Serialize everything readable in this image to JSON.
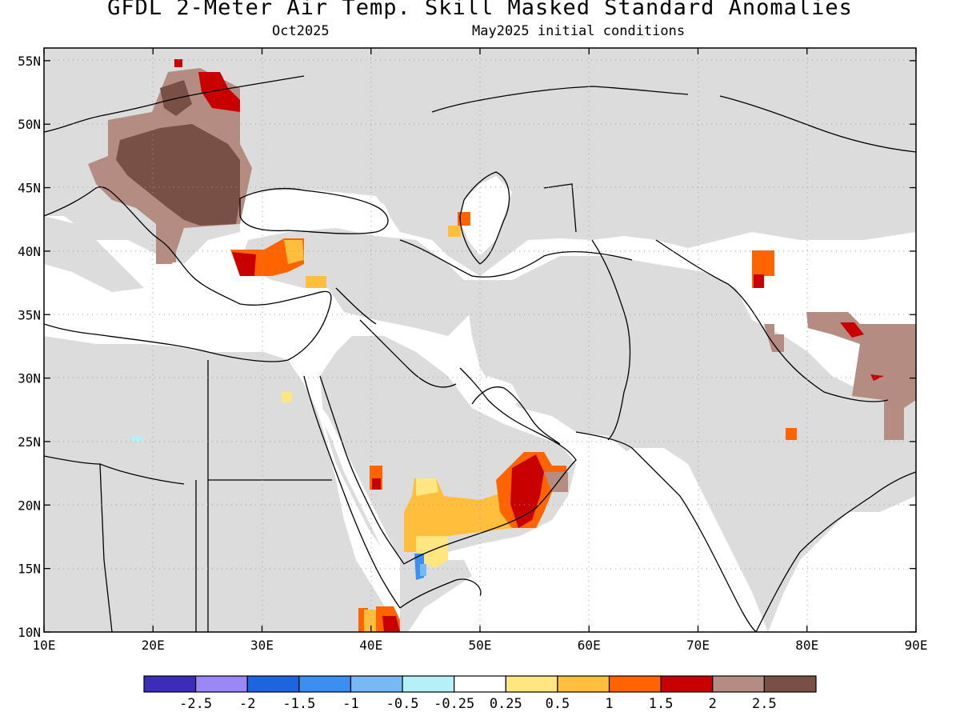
{
  "title": "GFDL 2-Meter Air Temp. Skill Masked Standard Anomalies",
  "valid_month": "Oct2025",
  "init_conditions": "May2025 initial conditions",
  "map": {
    "lon_range": [
      10,
      90
    ],
    "lat_range": [
      10,
      56
    ],
    "lon_ticks": [
      "10E",
      "20E",
      "30E",
      "40E",
      "50E",
      "60E",
      "70E",
      "80E",
      "90E"
    ],
    "lat_ticks": [
      "10N",
      "15N",
      "20N",
      "25N",
      "30N",
      "35N",
      "40N",
      "45N",
      "50N",
      "55N"
    ],
    "gridlines": "dotted",
    "land_mask_color": "#dcdcdc",
    "coastline_color": "#000000"
  },
  "colorbar": {
    "colors": [
      "#3b2db8",
      "#9b87f5",
      "#1c64e0",
      "#3c8ff0",
      "#78b9f5",
      "#b4f0f5",
      "#ffffff",
      "#ffe680",
      "#ffbe3c",
      "#ff6400",
      "#c80000",
      "#b48c82",
      "#785046"
    ],
    "labels": [
      "-2.5",
      "-2",
      "-1.5",
      "-1",
      "-0.5",
      "-0.25",
      "0.25",
      "0.5",
      "1",
      "1.5",
      "2",
      "2.5"
    ]
  },
  "anomaly_regions": [
    {
      "area": "Eastern Europe / Balkans",
      "category": "2.5"
    },
    {
      "area": "Belarus / western Russia",
      "category": "2"
    },
    {
      "area": "Western Turkey",
      "category": "1.5"
    },
    {
      "area": "Southern Arabian Peninsula",
      "category": "1"
    },
    {
      "area": "Oman interior",
      "category": "2"
    },
    {
      "area": "Tibetan Plateau",
      "category": "2.5"
    }
  ]
}
